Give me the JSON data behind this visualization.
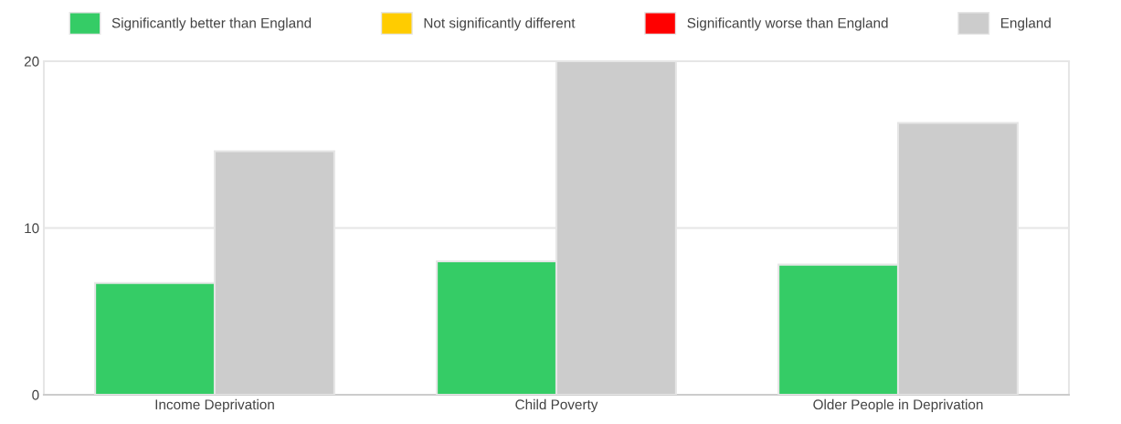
{
  "chart_data": {
    "type": "bar",
    "categories": [
      "Income Deprivation",
      "Child Poverty",
      "Older People in Deprivation"
    ],
    "series": [
      {
        "name": "Significantly better than England",
        "color": "#35cc66",
        "values": [
          6.7,
          8.0,
          7.8
        ]
      },
      {
        "name": "Not significantly different",
        "color": "#ffcc00",
        "values": [
          null,
          null,
          null
        ]
      },
      {
        "name": "Significantly worse than England",
        "color": "#ff0000",
        "values": [
          null,
          null,
          null
        ]
      },
      {
        "name": "England",
        "color": "#cccccc",
        "values": [
          14.6,
          20.0,
          16.3
        ]
      }
    ],
    "ylim": [
      0,
      20
    ],
    "yticks": [
      0,
      10,
      20
    ],
    "grid": "y",
    "legend": "top"
  }
}
